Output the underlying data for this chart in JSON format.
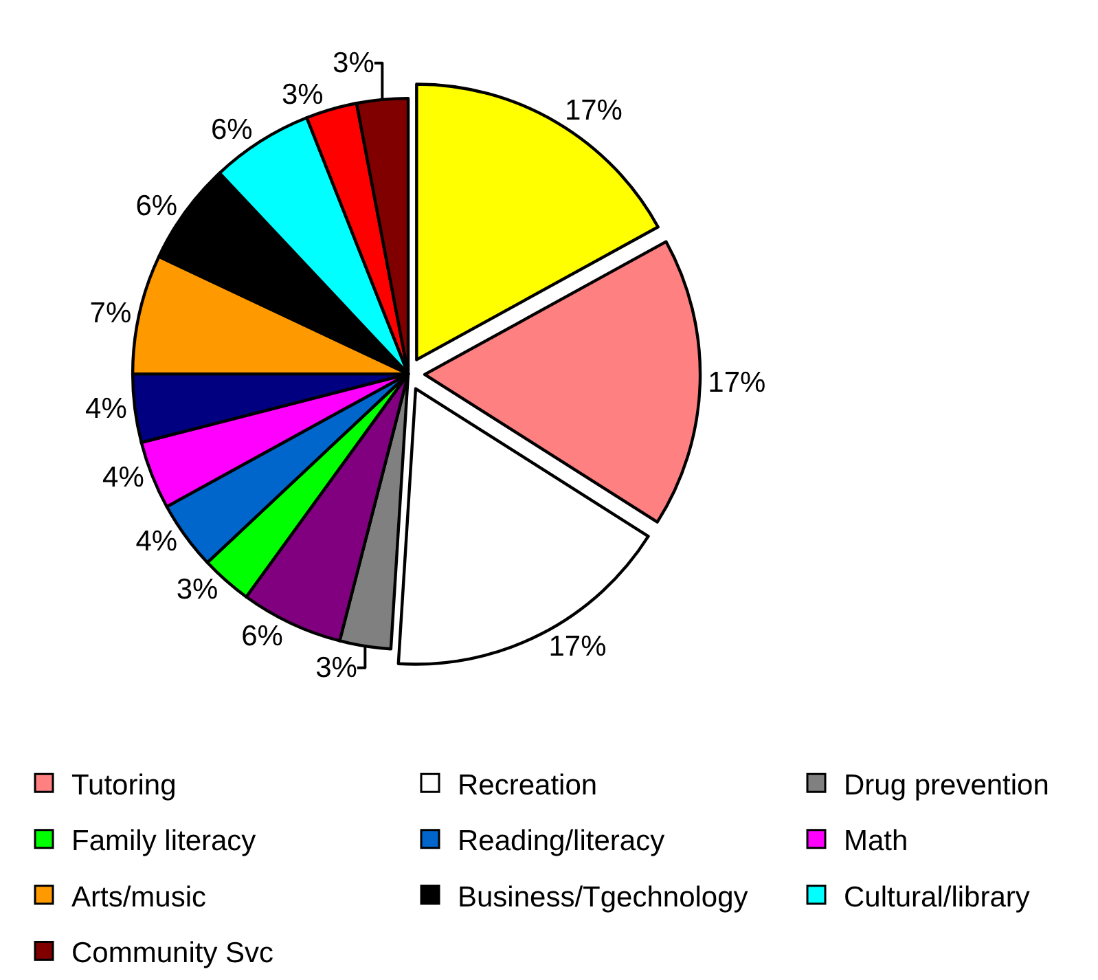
{
  "chart_data": {
    "type": "pie",
    "categories": [
      null,
      "Tutoring",
      "Recreation",
      "Drug prevention",
      null,
      "Family literacy",
      "Reading/literacy",
      "Math",
      null,
      "Arts/music",
      "Business/Tgechnology",
      "Cultural/library",
      null,
      "Community Svc"
    ],
    "values": [
      17,
      17,
      17,
      3,
      6,
      3,
      4,
      4,
      4,
      7,
      6,
      6,
      3,
      3
    ],
    "colors": [
      "#ffff00",
      "#ff8080",
      "#ffffff",
      "#808080",
      "#800080",
      "#00ff00",
      "#0066cc",
      "#ff00ff",
      "#000080",
      "#ff9900",
      "#000000",
      "#00ffff",
      "#ff0000",
      "#800000"
    ],
    "value_labels": [
      "17%",
      "17%",
      "17%",
      "3%",
      "6%",
      "3%",
      "4%",
      "4%",
      "4%",
      "7%",
      "6%",
      "6%",
      "3%",
      "3%"
    ],
    "legend": "bottom"
  }
}
